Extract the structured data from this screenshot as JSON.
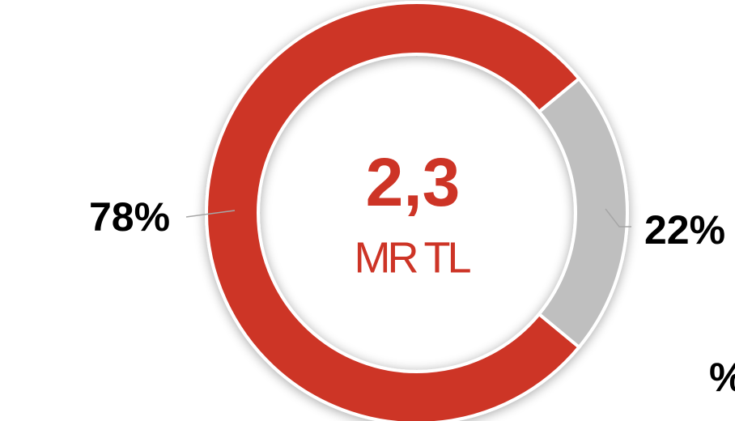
{
  "chart_data": {
    "type": "donut",
    "values": [
      78,
      22
    ],
    "value_labels": [
      "78%",
      "22%"
    ],
    "colors": [
      "#cd3426",
      "#bfbfbf"
    ],
    "center_value": "2,3",
    "center_unit": "MR TL",
    "annotations": [
      "%"
    ]
  }
}
